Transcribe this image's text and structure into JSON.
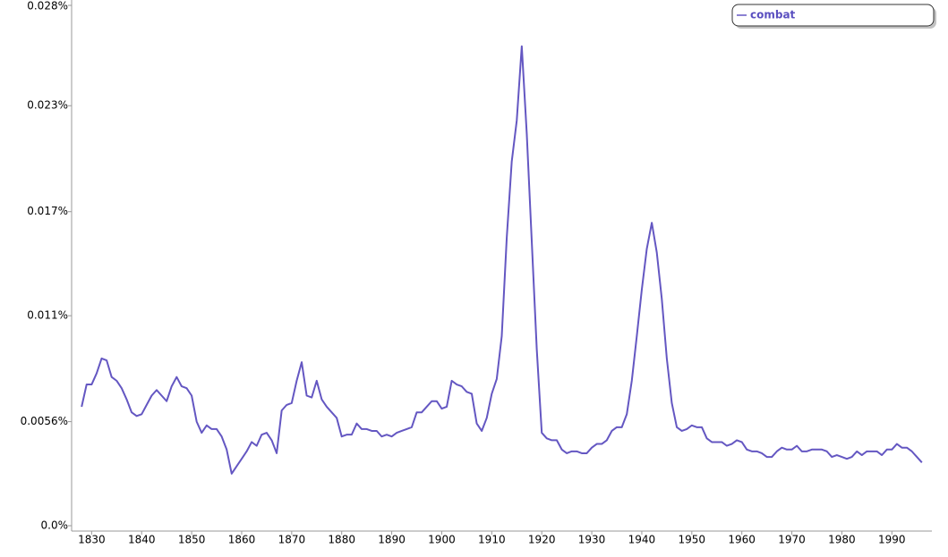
{
  "chart_data": {
    "type": "line",
    "x": [
      1828,
      1829,
      1830,
      1831,
      1832,
      1833,
      1834,
      1835,
      1836,
      1837,
      1838,
      1839,
      1840,
      1841,
      1842,
      1843,
      1844,
      1845,
      1846,
      1847,
      1848,
      1849,
      1850,
      1851,
      1852,
      1853,
      1854,
      1855,
      1856,
      1857,
      1858,
      1859,
      1860,
      1861,
      1862,
      1863,
      1864,
      1865,
      1866,
      1867,
      1868,
      1869,
      1870,
      1871,
      1872,
      1873,
      1874,
      1875,
      1876,
      1877,
      1878,
      1879,
      1880,
      1881,
      1882,
      1883,
      1884,
      1885,
      1886,
      1887,
      1888,
      1889,
      1890,
      1891,
      1892,
      1893,
      1894,
      1895,
      1896,
      1897,
      1898,
      1899,
      1900,
      1901,
      1902,
      1903,
      1904,
      1905,
      1906,
      1907,
      1908,
      1909,
      1910,
      1911,
      1912,
      1913,
      1914,
      1915,
      1916,
      1917,
      1918,
      1919,
      1920,
      1921,
      1922,
      1923,
      1924,
      1925,
      1926,
      1927,
      1928,
      1929,
      1930,
      1931,
      1932,
      1933,
      1934,
      1935,
      1936,
      1937,
      1938,
      1939,
      1940,
      1941,
      1942,
      1943,
      1944,
      1945,
      1946,
      1947,
      1948,
      1949,
      1950,
      1951,
      1952,
      1953,
      1954,
      1955,
      1956,
      1957,
      1958,
      1959,
      1960,
      1961,
      1962,
      1963,
      1964,
      1965,
      1966,
      1967,
      1968,
      1969,
      1970,
      1971,
      1972,
      1973,
      1974,
      1975,
      1976,
      1977,
      1978,
      1979,
      1980,
      1981,
      1982,
      1983,
      1984,
      1985,
      1986,
      1987,
      1988,
      1989,
      1990,
      1991,
      1992,
      1993,
      1994,
      1995,
      1996
    ],
    "series": [
      {
        "name": "combat",
        "color": "#6457c2",
        "values": [
          0.0064,
          0.0076,
          0.0076,
          0.0082,
          0.009,
          0.0089,
          0.008,
          0.0078,
          0.0074,
          0.0068,
          0.0061,
          0.0059,
          0.006,
          0.0065,
          0.007,
          0.0073,
          0.007,
          0.0067,
          0.0075,
          0.008,
          0.0075,
          0.0074,
          0.007,
          0.0056,
          0.005,
          0.0054,
          0.0052,
          0.0052,
          0.0048,
          0.0041,
          0.0028,
          0.0032,
          0.0036,
          0.004,
          0.0045,
          0.0043,
          0.0049,
          0.005,
          0.0046,
          0.0039,
          0.0062,
          0.0065,
          0.0066,
          0.0078,
          0.0088,
          0.007,
          0.0069,
          0.0078,
          0.0068,
          0.0064,
          0.0061,
          0.0058,
          0.0048,
          0.0049,
          0.0049,
          0.0055,
          0.0052,
          0.0052,
          0.0051,
          0.0051,
          0.0048,
          0.0049,
          0.0048,
          0.005,
          0.0051,
          0.0052,
          0.0053,
          0.0061,
          0.0061,
          0.0064,
          0.0067,
          0.0067,
          0.0063,
          0.0064,
          0.0078,
          0.0076,
          0.0075,
          0.0072,
          0.0071,
          0.0055,
          0.0051,
          0.0058,
          0.0071,
          0.0079,
          0.0102,
          0.0155,
          0.0196,
          0.0218,
          0.0258,
          0.0211,
          0.0153,
          0.0095,
          0.005,
          0.0047,
          0.0046,
          0.0046,
          0.0041,
          0.0039,
          0.004,
          0.004,
          0.0039,
          0.0039,
          0.0042,
          0.0044,
          0.0044,
          0.0046,
          0.0051,
          0.0053,
          0.0053,
          0.006,
          0.0078,
          0.0102,
          0.0127,
          0.0149,
          0.0163,
          0.0147,
          0.0122,
          0.009,
          0.0066,
          0.0053,
          0.0051,
          0.0052,
          0.0054,
          0.0053,
          0.0053,
          0.0047,
          0.0045,
          0.0045,
          0.0045,
          0.0043,
          0.0044,
          0.0046,
          0.0045,
          0.0041,
          0.004,
          0.004,
          0.0039,
          0.0037,
          0.0037,
          0.004,
          0.0042,
          0.0041,
          0.0041,
          0.0043,
          0.004,
          0.004,
          0.0041,
          0.0041,
          0.0041,
          0.004,
          0.0037,
          0.0038,
          0.0037,
          0.0036,
          0.0037,
          0.004,
          0.0038,
          0.004,
          0.004,
          0.004,
          0.0038,
          0.0041,
          0.0041,
          0.0044,
          0.0042,
          0.0042,
          0.004,
          0.0037,
          0.0034
        ]
      }
    ],
    "xlim": [
      1826,
      1998
    ],
    "xticks": [
      1830,
      1840,
      1850,
      1860,
      1870,
      1880,
      1890,
      1900,
      1910,
      1920,
      1930,
      1940,
      1950,
      1960,
      1970,
      1980,
      1990
    ],
    "ylim": [
      0,
      0.028
    ],
    "yticks": [
      {
        "value": 0,
        "label": "0.0%"
      },
      {
        "value": 0.0056,
        "label": "0.0056%"
      },
      {
        "value": 0.0113,
        "label": "0.011%"
      },
      {
        "value": 0.0169,
        "label": "0.017%"
      },
      {
        "value": 0.0226,
        "label": "0.023%"
      },
      {
        "value": 0.028,
        "label": "0.028%"
      }
    ],
    "legend": "top-right"
  }
}
